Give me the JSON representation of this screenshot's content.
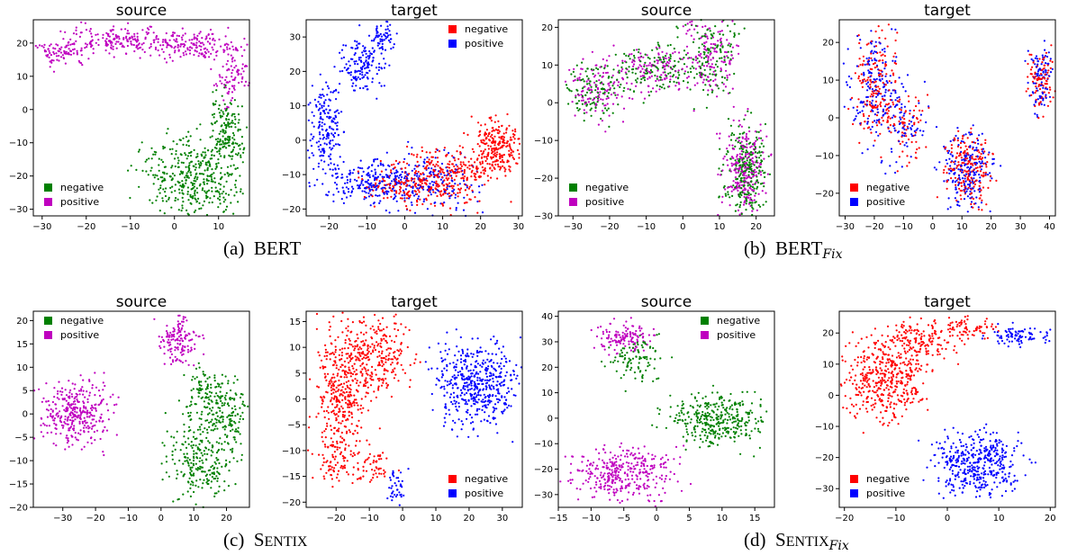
{
  "figure": {
    "captions": [
      {
        "label": "(a)",
        "main": "BERT",
        "rest": "",
        "sub": ""
      },
      {
        "label": "(b)",
        "main": "BERT",
        "rest": "",
        "sub": "Fix"
      },
      {
        "label": "(c)",
        "main": "S",
        "rest": "ENTIX",
        "sub": ""
      },
      {
        "label": "(d)",
        "main": "S",
        "rest": "ENTIX",
        "sub": "Fix"
      }
    ]
  },
  "colors": {
    "src_negative": "#008000",
    "src_positive": "#bf00bf",
    "tgt_negative": "#ff0000",
    "tgt_positive": "#0000ff"
  },
  "chart_data": [
    {
      "type": "scatter",
      "title": "source",
      "xlim": [
        -32,
        17
      ],
      "ylim": [
        -32,
        27
      ],
      "xticks": [
        -30,
        -20,
        -10,
        0,
        10
      ],
      "yticks": [
        -30,
        -20,
        -10,
        0,
        10,
        20
      ],
      "legend": "bottom-left",
      "series": [
        {
          "name": "negative",
          "color": "#008000",
          "clusters": [
            {
              "cx": 5,
              "cy": -20,
              "sx": 6,
              "sy": 6,
              "n": 420
            },
            {
              "cx": 12,
              "cy": -6,
              "sx": 2,
              "sy": 5,
              "n": 150
            }
          ]
        },
        {
          "name": "positive",
          "color": "#bf00bf",
          "clusters": [
            {
              "cx": -25,
              "cy": 17,
              "sx": 3,
              "sy": 2,
              "n": 90
            },
            {
              "cx": -12,
              "cy": 21,
              "sx": 6,
              "sy": 2,
              "n": 180
            },
            {
              "cx": 5,
              "cy": 19,
              "sx": 5,
              "sy": 2,
              "n": 160
            },
            {
              "cx": 13,
              "cy": 10,
              "sx": 2,
              "sy": 4,
              "n": 90
            }
          ]
        }
      ]
    },
    {
      "type": "scatter",
      "title": "target",
      "xlim": [
        -26,
        31
      ],
      "ylim": [
        -22,
        35
      ],
      "xticks": [
        -20,
        -10,
        0,
        10,
        20,
        30
      ],
      "yticks": [
        -20,
        -10,
        0,
        10,
        20,
        30
      ],
      "legend": "top-right",
      "series": [
        {
          "name": "negative",
          "color": "#ff0000",
          "clusters": [
            {
              "cx": 24,
              "cy": -2,
              "sx": 3,
              "sy": 4,
              "n": 250
            },
            {
              "cx": 12,
              "cy": -10,
              "sx": 6,
              "sy": 4,
              "n": 250
            },
            {
              "cx": 0,
              "cy": -13,
              "sx": 6,
              "sy": 3,
              "n": 150
            }
          ]
        },
        {
          "name": "positive",
          "color": "#0000ff",
          "clusters": [
            {
              "cx": -12,
              "cy": 22,
              "sx": 3,
              "sy": 4,
              "n": 150
            },
            {
              "cx": -6,
              "cy": 30,
              "sx": 1.5,
              "sy": 2,
              "n": 60
            },
            {
              "cx": -21,
              "cy": 3,
              "sx": 2,
              "sy": 6,
              "n": 180
            },
            {
              "cx": -10,
              "cy": -12,
              "sx": 6,
              "sy": 3,
              "n": 200
            },
            {
              "cx": 6,
              "cy": -12,
              "sx": 7,
              "sy": 4,
              "n": 200
            }
          ]
        }
      ]
    },
    {
      "type": "scatter",
      "title": "source",
      "xlim": [
        -34,
        25
      ],
      "ylim": [
        -30,
        22
      ],
      "xticks": [
        -30,
        -20,
        -10,
        0,
        10,
        20
      ],
      "yticks": [
        -30,
        -20,
        -10,
        0,
        10,
        20
      ],
      "legend": "bottom-left",
      "series": [
        {
          "name": "negative",
          "color": "#008000",
          "clusters": [
            {
              "cx": -24,
              "cy": 3,
              "sx": 4,
              "sy": 4,
              "n": 120
            },
            {
              "cx": -8,
              "cy": 9,
              "sx": 5,
              "sy": 3,
              "n": 120
            },
            {
              "cx": 7,
              "cy": 12,
              "sx": 4,
              "sy": 5,
              "n": 150
            },
            {
              "cx": 17,
              "cy": -18,
              "sx": 3,
              "sy": 6,
              "n": 250
            }
          ]
        },
        {
          "name": "positive",
          "color": "#bf00bf",
          "clusters": [
            {
              "cx": -24,
              "cy": 3,
              "sx": 4,
              "sy": 4,
              "n": 120
            },
            {
              "cx": -8,
              "cy": 9,
              "sx": 5,
              "sy": 3,
              "n": 120
            },
            {
              "cx": 7,
              "cy": 12,
              "sx": 4,
              "sy": 5,
              "n": 150
            },
            {
              "cx": 17,
              "cy": -18,
              "sx": 3,
              "sy": 6,
              "n": 250
            }
          ]
        }
      ]
    },
    {
      "type": "scatter",
      "title": "target",
      "xlim": [
        -32,
        42
      ],
      "ylim": [
        -26,
        26
      ],
      "xticks": [
        -30,
        -20,
        -10,
        0,
        10,
        20,
        30,
        40
      ],
      "yticks": [
        -20,
        -10,
        0,
        10,
        20
      ],
      "legend": "bottom-left",
      "series": [
        {
          "name": "negative",
          "color": "#ff0000",
          "clusters": [
            {
              "cx": -20,
              "cy": 8,
              "sx": 4,
              "sy": 7,
              "n": 170
            },
            {
              "cx": -10,
              "cy": -2,
              "sx": 4,
              "sy": 5,
              "n": 80
            },
            {
              "cx": 12,
              "cy": -14,
              "sx": 4,
              "sy": 5,
              "n": 200
            },
            {
              "cx": 37,
              "cy": 10,
              "sx": 2,
              "sy": 4,
              "n": 90
            }
          ]
        },
        {
          "name": "positive",
          "color": "#0000ff",
          "clusters": [
            {
              "cx": -20,
              "cy": 8,
              "sx": 4,
              "sy": 7,
              "n": 170
            },
            {
              "cx": -10,
              "cy": -2,
              "sx": 4,
              "sy": 5,
              "n": 80
            },
            {
              "cx": 12,
              "cy": -14,
              "sx": 4,
              "sy": 5,
              "n": 200
            },
            {
              "cx": 37,
              "cy": 10,
              "sx": 2,
              "sy": 4,
              "n": 90
            }
          ]
        }
      ]
    },
    {
      "type": "scatter",
      "title": "source",
      "xlim": [
        -39,
        27
      ],
      "ylim": [
        -20,
        22
      ],
      "xticks": [
        -40,
        -30,
        -20,
        -10,
        0,
        10,
        20
      ],
      "yticks": [
        -20,
        -15,
        -10,
        -5,
        0,
        5,
        10,
        15,
        20
      ],
      "legend": "top-left",
      "series": [
        {
          "name": "negative",
          "color": "#008000",
          "clusters": [
            {
              "cx": 15,
              "cy": 4,
              "sx": 4,
              "sy": 3,
              "n": 140
            },
            {
              "cx": 21,
              "cy": -1,
              "sx": 2.5,
              "sy": 3,
              "n": 90
            },
            {
              "cx": 12,
              "cy": -10,
              "sx": 5,
              "sy": 4,
              "n": 250
            }
          ]
        },
        {
          "name": "positive",
          "color": "#bf00bf",
          "clusters": [
            {
              "cx": -26,
              "cy": 0,
              "sx": 5,
              "sy": 3.5,
              "n": 340
            },
            {
              "cx": 5,
              "cy": 16,
              "sx": 3,
              "sy": 2.5,
              "n": 140
            }
          ]
        }
      ]
    },
    {
      "type": "scatter",
      "title": "target",
      "xlim": [
        -29,
        36
      ],
      "ylim": [
        -21,
        17
      ],
      "xticks": [
        -20,
        -10,
        0,
        10,
        20,
        30
      ],
      "yticks": [
        -20,
        -15,
        -10,
        -5,
        0,
        5,
        10,
        15
      ],
      "legend": "bottom-right",
      "series": [
        {
          "name": "negative",
          "color": "#ff0000",
          "clusters": [
            {
              "cx": -18,
              "cy": 2,
              "sx": 4,
              "sy": 6,
              "n": 350
            },
            {
              "cx": -8,
              "cy": 8,
              "sx": 5,
              "sy": 4,
              "n": 250
            },
            {
              "cx": -20,
              "cy": -11,
              "sx": 3,
              "sy": 3,
              "n": 100
            },
            {
              "cx": -8,
              "cy": -13,
              "sx": 2.5,
              "sy": 2,
              "n": 50
            }
          ]
        },
        {
          "name": "positive",
          "color": "#0000ff",
          "clusters": [
            {
              "cx": 22,
              "cy": 3,
              "sx": 6,
              "sy": 4,
              "n": 480
            },
            {
              "cx": -2,
              "cy": -17,
              "sx": 1.5,
              "sy": 2,
              "n": 40
            }
          ]
        }
      ]
    },
    {
      "type": "scatter",
      "title": "source",
      "xlim": [
        -15,
        18
      ],
      "ylim": [
        -35,
        42
      ],
      "xticks": [
        -15,
        -10,
        -5,
        0,
        5,
        10,
        15
      ],
      "yticks": [
        -30,
        -20,
        -10,
        0,
        10,
        20,
        30,
        40
      ],
      "legend": "top-right",
      "series": [
        {
          "name": "negative",
          "color": "#008000",
          "clusters": [
            {
              "cx": 9,
              "cy": -1,
              "sx": 3.5,
              "sy": 5,
              "n": 350
            },
            {
              "cx": -3,
              "cy": 23,
              "sx": 2,
              "sy": 4,
              "n": 100
            }
          ]
        },
        {
          "name": "positive",
          "color": "#bf00bf",
          "clusters": [
            {
              "cx": -5,
              "cy": 32,
              "sx": 2,
              "sy": 3,
              "n": 130
            },
            {
              "cx": -5,
              "cy": -22,
              "sx": 4,
              "sy": 5,
              "n": 350
            }
          ]
        }
      ]
    },
    {
      "type": "scatter",
      "title": "target",
      "xlim": [
        -21,
        21
      ],
      "ylim": [
        -36,
        27
      ],
      "xticks": [
        -20,
        -10,
        0,
        10,
        20
      ],
      "yticks": [
        -30,
        -20,
        -10,
        0,
        10,
        20
      ],
      "legend": "bottom-left",
      "series": [
        {
          "name": "negative",
          "color": "#ff0000",
          "clusters": [
            {
              "cx": -12,
              "cy": 5,
              "sx": 4,
              "sy": 6,
              "n": 450
            },
            {
              "cx": -5,
              "cy": 18,
              "sx": 4,
              "sy": 3,
              "n": 150
            },
            {
              "cx": 3,
              "cy": 22,
              "sx": 3,
              "sy": 2,
              "n": 70
            }
          ]
        },
        {
          "name": "positive",
          "color": "#0000ff",
          "clusters": [
            {
              "cx": 14,
              "cy": 19,
              "sx": 3,
              "sy": 1.5,
              "n": 90
            },
            {
              "cx": 6,
              "cy": -22,
              "sx": 4,
              "sy": 5,
              "n": 420
            }
          ]
        }
      ]
    }
  ]
}
